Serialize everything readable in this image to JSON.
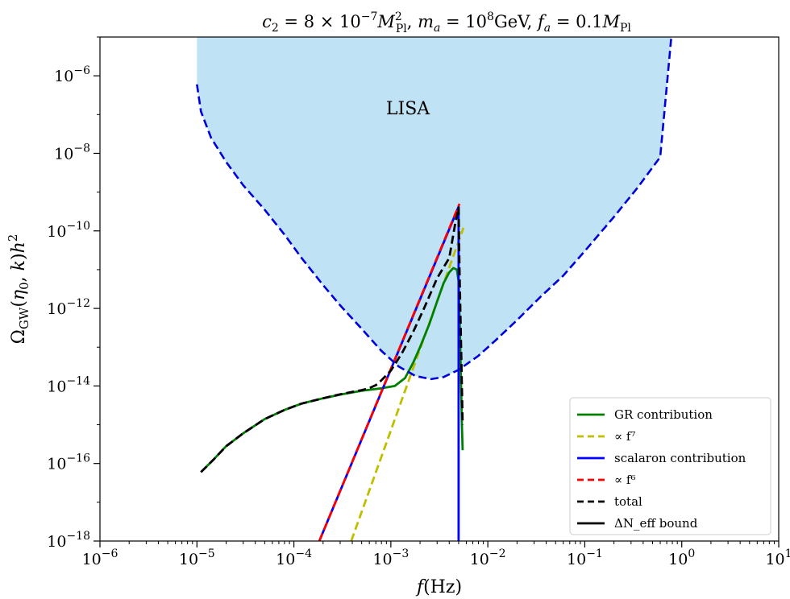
{
  "chart_data": {
    "type": "line",
    "title": "c₂ = 8 × 10⁻⁷ M_Pl²,   m_a = 10⁸ GeV,   f_a = 0.1 M_Pl",
    "xlabel": "f(Hz)",
    "ylabel": "Ω_GW(η₀, k) h²",
    "xscale": "log",
    "yscale": "log",
    "xlim": [
      1e-06,
      10
    ],
    "ylim": [
      1e-18,
      1e-05
    ],
    "x_ticks": [
      {
        "value": 1e-06,
        "base": "10",
        "exp": "−6"
      },
      {
        "value": 1e-05,
        "base": "10",
        "exp": "−5"
      },
      {
        "value": 0.0001,
        "base": "10",
        "exp": "−4"
      },
      {
        "value": 0.001,
        "base": "10",
        "exp": "−3"
      },
      {
        "value": 0.01,
        "base": "10",
        "exp": "−2"
      },
      {
        "value": 0.1,
        "base": "10",
        "exp": "−1"
      },
      {
        "value": 1,
        "base": "10",
        "exp": "0"
      },
      {
        "value": 10,
        "base": "10",
        "exp": "1"
      }
    ],
    "y_ticks": [
      {
        "value": 1e-18,
        "base": "10",
        "exp": "−18"
      },
      {
        "value": 1e-16,
        "base": "10",
        "exp": "−16"
      },
      {
        "value": 1e-14,
        "base": "10",
        "exp": "−14"
      },
      {
        "value": 1e-12,
        "base": "10",
        "exp": "−12"
      },
      {
        "value": 1e-10,
        "base": "10",
        "exp": "−10"
      },
      {
        "value": 1e-08,
        "base": "10",
        "exp": "−8"
      },
      {
        "value": 1e-06,
        "base": "10",
        "exp": "−6"
      }
    ],
    "annotations": [
      {
        "text": "LISA",
        "x": 0.0015,
        "y": 1.5e-07
      }
    ],
    "legend": {
      "placement": "lower-right",
      "entries": [
        {
          "label": "GR contribution",
          "color": "#008000",
          "dash": "solid"
        },
        {
          "label": "∝ f⁷",
          "color": "#bfbf00",
          "dash": "dashed"
        },
        {
          "label": "scalaron contribution",
          "color": "#0000ff",
          "dash": "solid"
        },
        {
          "label": "∝ f⁶",
          "color": "#ff0000",
          "dash": "dashed"
        },
        {
          "label": "total",
          "color": "#000000",
          "dash": "dashed"
        },
        {
          "label": "ΔN_eff   bound",
          "color": "#000000",
          "dash": "solid"
        }
      ]
    },
    "series": [
      {
        "key": "lisa",
        "color": "#87ceeb",
        "dash": "dashed",
        "x": [
          1e-05,
          1.1e-05,
          1.4e-05,
          2e-05,
          3e-05,
          5e-05,
          8e-05,
          0.00012,
          0.0002,
          0.0003,
          0.0005,
          0.0008,
          0.0012,
          0.0018,
          0.0026,
          0.0035,
          0.005,
          0.008,
          0.012,
          0.02,
          0.035,
          0.06,
          0.1,
          0.2,
          0.35,
          0.6,
          0.8
        ],
        "y": [
          6e-07,
          1.2e-07,
          2.5e-08,
          6e-09,
          1.5e-09,
          3.5e-10,
          8e-11,
          2e-11,
          4e-12,
          1.2e-12,
          3e-13,
          8e-14,
          3.2e-14,
          1.8e-14,
          1.5e-14,
          1.7e-14,
          2.6e-14,
          6e-14,
          1.5e-13,
          5e-13,
          2e-12,
          7e-12,
          3e-11,
          2.3e-10,
          1.3e-09,
          8e-09,
          2e-05
        ]
      },
      {
        "key": "gr",
        "color": "#008000",
        "dash": "solid",
        "x": [
          1.1e-05,
          1.5e-05,
          2e-05,
          3e-05,
          5e-05,
          8e-05,
          0.00012,
          0.0002,
          0.0003,
          0.0005,
          0.0008,
          0.0011,
          0.0014,
          0.0017,
          0.002,
          0.0025,
          0.003,
          0.0035,
          0.004,
          0.0044,
          0.0048,
          0.005,
          0.0052,
          0.0054,
          0.0055
        ],
        "y": [
          6e-17,
          1.3e-16,
          2.8e-16,
          6e-16,
          1.4e-15,
          2.4e-15,
          3.5e-15,
          4.8e-15,
          6e-15,
          7.5e-15,
          8.7e-15,
          1e-14,
          1.6e-14,
          4e-14,
          1e-13,
          4e-13,
          1.5e-12,
          4.5e-12,
          8.5e-12,
          1.1e-11,
          1e-11,
          5e-12,
          1e-13,
          1e-15,
          2.2e-16
        ]
      },
      {
        "key": "f7",
        "color": "#bfbf00",
        "dash": "dashed",
        "x": [
          0.00039,
          0.0056
        ],
        "y": [
          1e-18,
          1.2e-10
        ]
      },
      {
        "key": "scalaron",
        "color": "#0000ff",
        "dash": "solid",
        "x": [
          0.000183,
          0.005,
          0.005
        ],
        "y": [
          1e-18,
          4.2e-10,
          1e-18
        ]
      },
      {
        "key": "f6",
        "color": "#ff0000",
        "dash": "dashed",
        "x": [
          0.000183,
          0.0051
        ],
        "y": [
          1e-18,
          5e-10
        ]
      },
      {
        "key": "total",
        "color": "#000000",
        "dash": "dashed",
        "x": [
          1.1e-05,
          1.5e-05,
          2e-05,
          3e-05,
          5e-05,
          8e-05,
          0.00012,
          0.0002,
          0.0003,
          0.0004,
          0.0005,
          0.0006,
          0.0007,
          0.0008,
          0.001,
          0.0013,
          0.0017,
          0.0022,
          0.003,
          0.004,
          0.0046,
          0.005,
          0.0051,
          0.0053,
          0.0055
        ],
        "y": [
          6e-17,
          1.3e-16,
          2.8e-16,
          6e-16,
          1.4e-15,
          2.4e-15,
          3.5e-15,
          4.8e-15,
          6.1e-15,
          7e-15,
          7.8e-15,
          8.8e-15,
          1.05e-14,
          1.4e-14,
          2.5e-14,
          7e-14,
          2.5e-13,
          1e-12,
          6e-12,
          2e-11,
          1.5e-10,
          4e-10,
          1e-11,
          1e-13,
          1e-15
        ]
      },
      {
        "key": "bound",
        "color": "#000000",
        "dash": "solid",
        "x": [
          1e-06,
          10
        ],
        "y": [
          1.1e-05,
          1.1e-05
        ]
      }
    ]
  }
}
